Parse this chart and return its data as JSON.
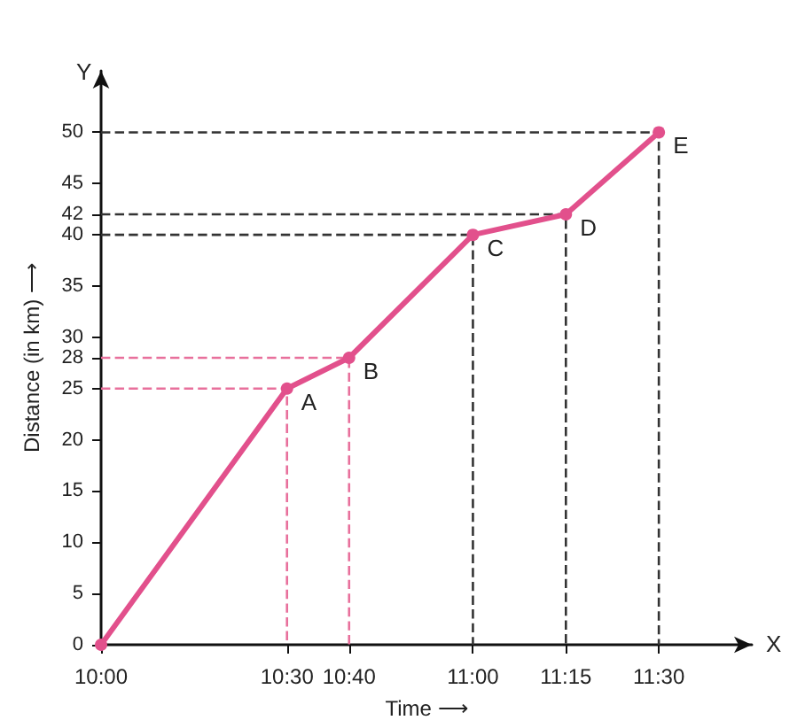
{
  "chart_data": {
    "type": "line",
    "xlabel": "Time ⟶",
    "ylabel": "Distance (in km) ⟶",
    "xlim": [
      10,
      11.75
    ],
    "ylim": [
      0,
      56
    ],
    "xticks": [
      {
        "value": 10,
        "label": "10:00"
      },
      {
        "value": 10.5,
        "label": "10:30"
      },
      {
        "value": 10.667,
        "label": "10:40"
      },
      {
        "value": 11,
        "label": "11:00"
      },
      {
        "value": 11.25,
        "label": "11:15"
      },
      {
        "value": 11.5,
        "label": "11:30"
      }
    ],
    "yticks": [
      0,
      5,
      10,
      15,
      20,
      25,
      28,
      30,
      35,
      40,
      42,
      45,
      50
    ],
    "grid": false,
    "series": [
      {
        "color": "#e2508c",
        "marker": "circle",
        "line_style": "solid",
        "x": [
          10,
          10.5,
          10.667,
          11,
          11.25,
          11.5
        ],
        "values": [
          0,
          25,
          28,
          40,
          42,
          50
        ]
      },
      {
        "color": "#e8709c",
        "marker": "none",
        "line_style": "dashed",
        "x": [
          10,
          10.5,
          10.5
        ],
        "values": [
          25,
          25,
          0
        ]
      },
      {
        "color": "#e8709c",
        "marker": "none",
        "line_style": "dashed",
        "x": [
          10,
          10.667,
          10.667
        ],
        "values": [
          28,
          28,
          0
        ]
      },
      {
        "color": "#333333",
        "marker": "none",
        "line_style": "dashed",
        "x": [
          10,
          11,
          11
        ],
        "values": [
          40,
          40,
          0
        ]
      },
      {
        "color": "#333333",
        "marker": "none",
        "line_style": "dashed",
        "x": [
          10,
          11.25,
          11.25
        ],
        "values": [
          42,
          42,
          0
        ]
      },
      {
        "color": "#333333",
        "marker": "none",
        "line_style": "dashed",
        "x": [
          10,
          11.5,
          11.5
        ],
        "values": [
          50,
          50,
          0
        ]
      }
    ],
    "annotations": [
      {
        "text": "A",
        "x": 10.5,
        "y": 25
      },
      {
        "text": "B",
        "x": 10.667,
        "y": 28
      },
      {
        "text": "C",
        "x": 11,
        "y": 40
      },
      {
        "text": "D",
        "x": 11.25,
        "y": 42
      },
      {
        "text": "E",
        "x": 11.5,
        "y": 50
      },
      "X",
      "Y"
    ]
  }
}
